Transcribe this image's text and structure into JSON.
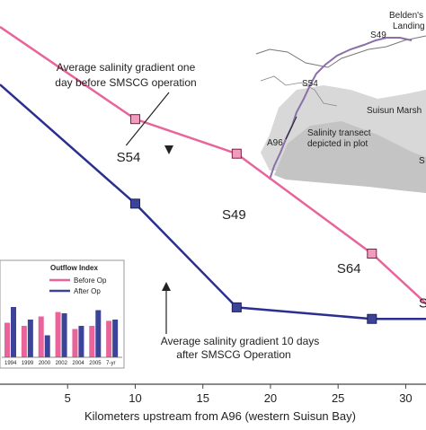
{
  "chart_data": {
    "type": "line",
    "xlabel": "Kilometers upstream from A96 (western Suisun Bay)",
    "ylabel": "",
    "xticks": [
      5,
      10,
      15,
      20,
      25,
      30
    ],
    "xlim": [
      0,
      31.5
    ],
    "ylim": [
      0,
      1
    ],
    "series": [
      {
        "name": "Average salinity gradient one day before SMSCG operation",
        "color": "#e8649a",
        "marker_fill": "#f19bbf",
        "x": [
          0,
          10,
          17.5,
          27.5,
          31.5
        ],
        "y": [
          0.93,
          0.69,
          0.6,
          0.34,
          0.21
        ]
      },
      {
        "name": "Average salinity gradient 10 days after SMSCG Operation",
        "color": "#2b2f8f",
        "marker_fill": "#3c4499",
        "x": [
          0,
          10,
          17.5,
          27.5,
          31.5
        ],
        "y": [
          0.78,
          0.47,
          0.2,
          0.17,
          0.17
        ]
      }
    ],
    "station_labels": [
      {
        "text": "S54",
        "x": 9.5,
        "y": 0.58
      },
      {
        "text": "S49",
        "x": 17.3,
        "y": 0.43
      },
      {
        "text": "S64",
        "x": 25.8,
        "y": 0.29
      },
      {
        "text": "S",
        "x": 31.3,
        "y": 0.2
      }
    ],
    "annotations": [
      {
        "lines": [
          "Average salinity gradient one",
          "day before SMSCG operation"
        ],
        "arrow_to": {
          "x": 17.3,
          "y": 0.61
        }
      },
      {
        "lines": [
          "Average salinity gradient 10 days",
          "after SMSCG Operation"
        ],
        "arrow_to": {
          "x": 13.9,
          "y": 0.32
        }
      }
    ],
    "map_labels": [
      "Belden's",
      "Landing",
      "S49",
      "S54",
      "Suisun Marsh",
      "Salinity transect",
      "depicted in plot",
      "A96",
      "S"
    ],
    "inset": {
      "title": "Outflow Index",
      "type": "bar",
      "categories": [
        "1994",
        "1999",
        "2000",
        "2002",
        "2004",
        "2005",
        "7-yr"
      ],
      "series": [
        {
          "name": "Before Op",
          "color": "#e8649a",
          "values": [
            0.55,
            0.5,
            0.65,
            0.72,
            0.45,
            0.5,
            0.58
          ]
        },
        {
          "name": "After Op",
          "color": "#3c4499",
          "values": [
            0.8,
            0.6,
            0.35,
            0.7,
            0.5,
            0.75,
            0.6
          ]
        }
      ]
    }
  }
}
